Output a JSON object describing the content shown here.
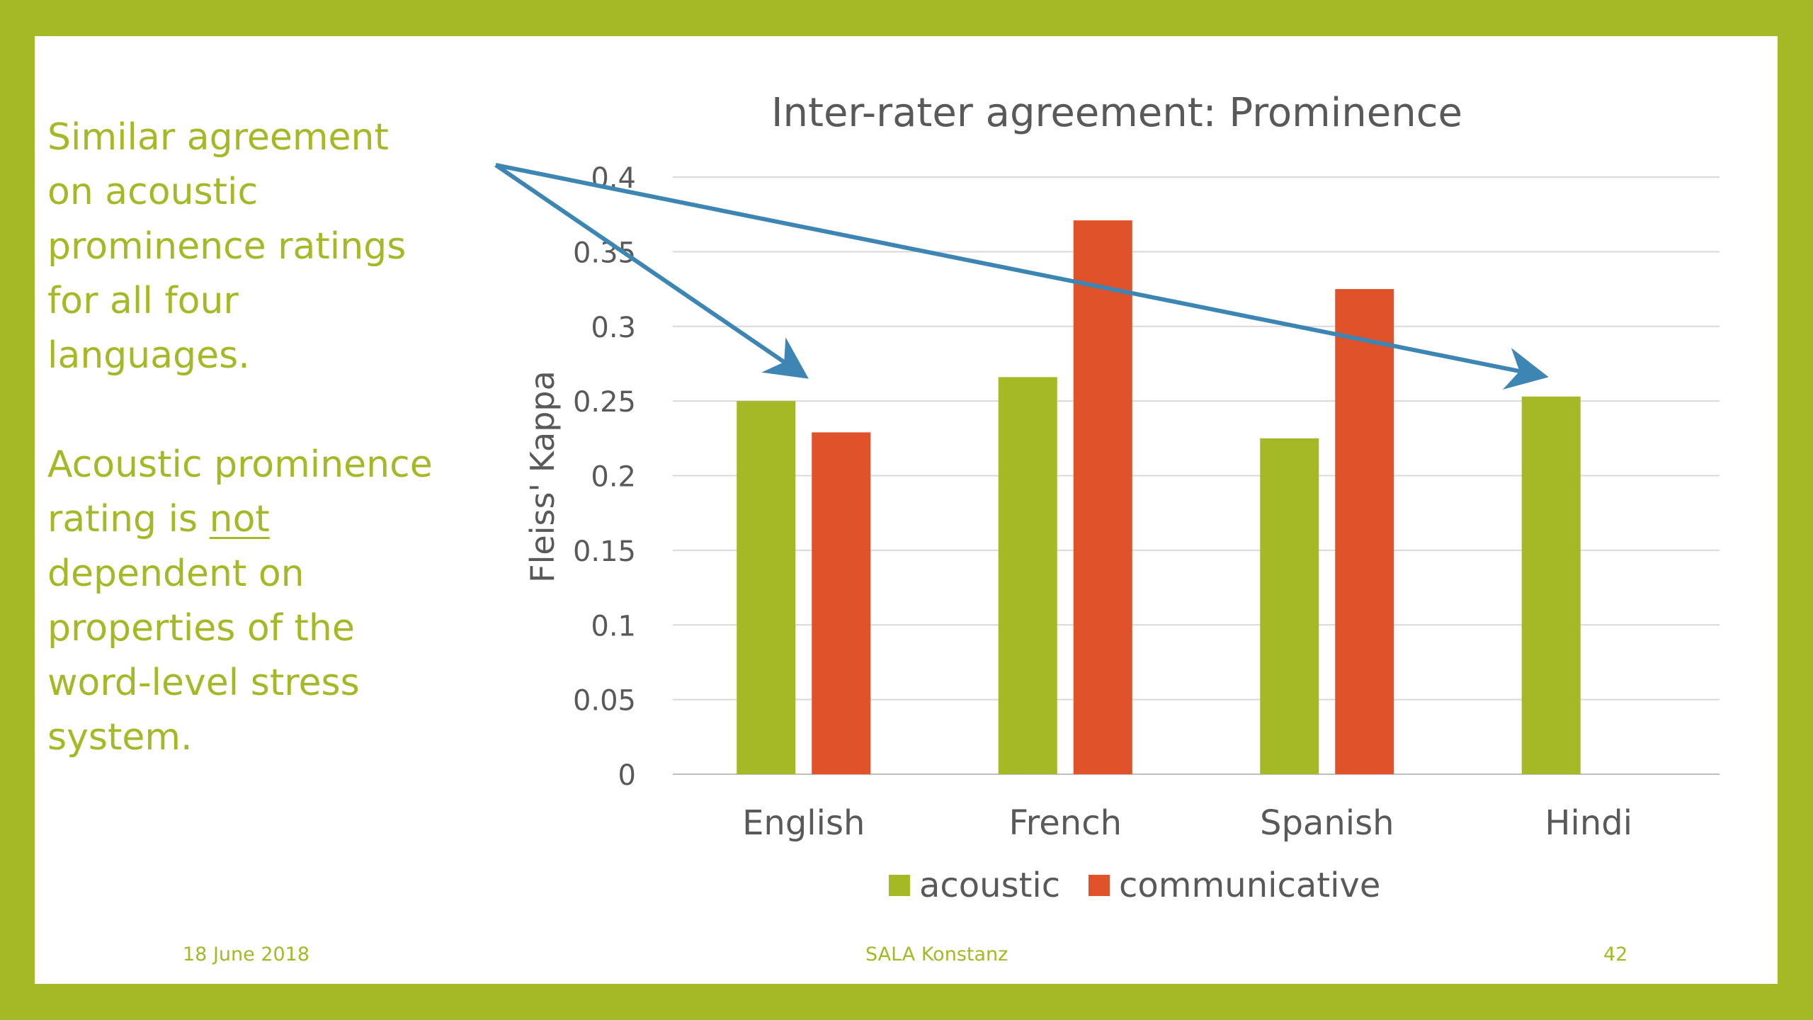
{
  "slide": {
    "paragraph1": [
      "Similar agreement",
      "on acoustic",
      "prominence ratings",
      "for all four",
      "languages."
    ],
    "paragraph2_prefix": "Acoustic prominence",
    "paragraph2_line2_start": "rating is ",
    "paragraph2_emphasis": "not",
    "paragraph2_rest": [
      "dependent on",
      "properties of the",
      "word-level stress",
      "system."
    ],
    "footer_date": "18 June  2018",
    "footer_venue": "SALA Konstanz",
    "footer_page": "42",
    "colors": {
      "frame": "#a5b826",
      "accent_text": "#a5b826",
      "arrow": "#3d86b3"
    }
  },
  "chart_data": {
    "type": "bar",
    "title": "Inter-rater agreement: Prominence",
    "ylabel": "Fleiss' Kappa",
    "xlabel": "",
    "categories": [
      "English",
      "French",
      "Spanish",
      "Hindi"
    ],
    "series": [
      {
        "name": "acoustic",
        "color": "#a5b826",
        "values": [
          0.25,
          0.266,
          0.225,
          0.253
        ]
      },
      {
        "name": "communicative",
        "color": "#e0522a",
        "values": [
          0.229,
          0.371,
          0.325,
          null
        ]
      }
    ],
    "ylim": [
      0,
      0.4
    ],
    "yticks": [
      0,
      0.05,
      0.1,
      0.15,
      0.2,
      0.25,
      0.3,
      0.35,
      0.4
    ],
    "ytick_labels": [
      "0",
      "0.05",
      "0.1",
      "0.15",
      "0.2",
      "0.25",
      "0.3",
      "0.35",
      "0.4"
    ],
    "grid": true,
    "legend_position": "bottom"
  }
}
